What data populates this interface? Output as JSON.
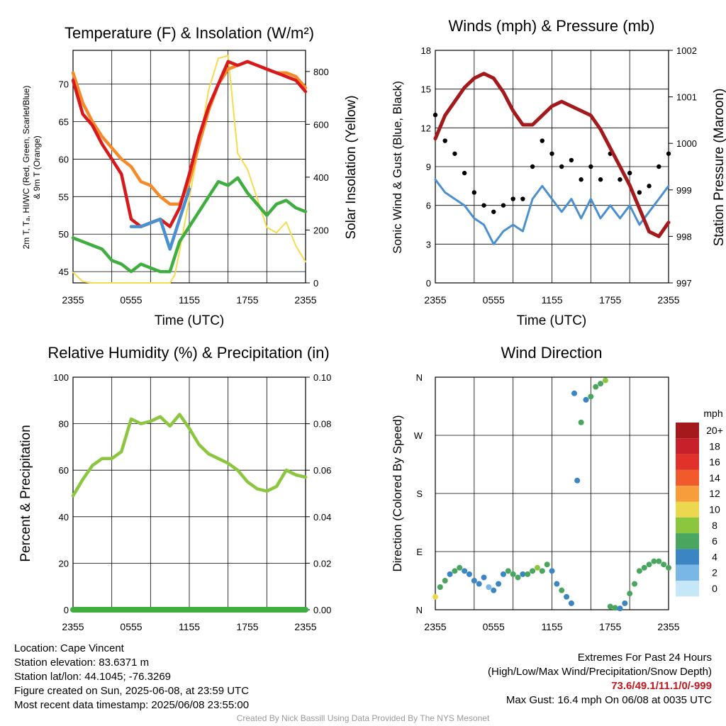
{
  "time_ticks": [
    "2355",
    "0555",
    "1155",
    "1755",
    "2355"
  ],
  "colors": {
    "temp": "#d7191c",
    "dewpoint": "#3fae3f",
    "windchill": "#4a90cf",
    "temp9m": "#f58a2a",
    "solar": "#f6dc4c",
    "sonic": "#4a90cf",
    "gust": "#000000",
    "pressure": "#a3191c",
    "rh": "#8cc63f",
    "precip": "#3fae3f"
  },
  "panels": {
    "temp": {
      "title": "Temperature (F) & Insolation (W/m²)",
      "xlabel": "Time (UTC)",
      "ylabel_line1": "2m T, Tₐ, HI/WC (Red, Green, Scarlet/Blue)",
      "ylabel_line2": "& 9m T (Orange)",
      "ylabel_right": "Solar Insolation (Yellow)"
    },
    "wind": {
      "title": "Winds (mph) & Pressure (mb)",
      "xlabel": "Time (UTC)",
      "ylabel_left": "Sonic Wind & Gust (Blue, Black)",
      "ylabel_right": "Station Pressure (Maroon)"
    },
    "rh": {
      "title": "Relative Humidity (%) & Precipitation (in)",
      "ylabel": "Percent & Precipitation"
    },
    "dir": {
      "title": "Wind Direction",
      "ylabel": "Direction (Colored By Speed)",
      "colorbar_title": "mph",
      "colorbar_labels": [
        "20+",
        "18",
        "16",
        "14",
        "12",
        "10",
        "8",
        "6",
        "4",
        "2",
        "0"
      ],
      "colorbar_colors": [
        "#a3191c",
        "#c7202a",
        "#e0322b",
        "#f15a2b",
        "#f89d3c",
        "#ecd84e",
        "#8cc63f",
        "#4aa55e",
        "#3b86c2",
        "#79b8e6",
        "#c5e7f7"
      ]
    }
  },
  "chart_data": [
    {
      "type": "line",
      "title": "Temperature (F) & Insolation (W/m²)",
      "xlabel": "Time (UTC)",
      "x_ticks": [
        "2355",
        "0555",
        "1155",
        "1755",
        "2355"
      ],
      "y_left_range": [
        43.5,
        74.5
      ],
      "y_left_ticks": [
        45,
        50,
        55,
        60,
        65,
        70
      ],
      "y_right_range": [
        0,
        880
      ],
      "y_right_ticks": [
        0,
        200,
        400,
        600,
        800
      ],
      "series": [
        {
          "name": "2m T",
          "axis": "left",
          "color": "#d7191c",
          "x": [
            0,
            1,
            2,
            3,
            4,
            5,
            6,
            7,
            8,
            9,
            10,
            11,
            12,
            13,
            14,
            15,
            16,
            17,
            18,
            19,
            20,
            21,
            22,
            23,
            24
          ],
          "y": [
            70.5,
            66,
            64.5,
            62,
            60,
            58,
            52,
            51,
            51.5,
            52,
            51,
            53.5,
            58,
            63,
            67,
            70,
            73,
            72.5,
            73,
            72.5,
            72,
            71.5,
            71,
            70.5,
            69
          ]
        },
        {
          "name": "Dewpoint",
          "axis": "left",
          "color": "#3fae3f",
          "x": [
            0,
            1,
            2,
            3,
            4,
            5,
            6,
            7,
            8,
            9,
            10,
            11,
            12,
            13,
            14,
            15,
            16,
            17,
            18,
            19,
            20,
            21,
            22,
            23,
            24
          ],
          "y": [
            49.5,
            49,
            48.5,
            48,
            46.5,
            46,
            45,
            46,
            45.5,
            45,
            45,
            49,
            51,
            53,
            55,
            57,
            56.5,
            57.5,
            55.5,
            54,
            52.5,
            54,
            54.5,
            53.5,
            53
          ]
        },
        {
          "name": "HI/WC",
          "axis": "left",
          "color": "#4a90cf",
          "x": [
            6,
            7,
            8,
            9,
            10,
            11,
            12
          ],
          "y": [
            51,
            51,
            51.5,
            52,
            48,
            52,
            56
          ]
        },
        {
          "name": "9m T",
          "axis": "left",
          "color": "#f58a2a",
          "x": [
            0,
            1,
            2,
            3,
            4,
            5,
            6,
            7,
            8,
            9,
            10,
            11,
            12,
            13,
            14,
            15,
            16,
            17,
            18,
            19,
            20,
            21,
            22,
            23,
            24
          ],
          "y": [
            71.5,
            67.5,
            65,
            63,
            61.5,
            60,
            59,
            57,
            56.5,
            55,
            54,
            54,
            57,
            62,
            66.5,
            70,
            72,
            72.5,
            73,
            72.5,
            72,
            71.5,
            71.5,
            71,
            69.5
          ]
        },
        {
          "name": "Solar",
          "axis": "right",
          "color": "#f6dc4c",
          "x": [
            0,
            1,
            2,
            3,
            4,
            5,
            6,
            7,
            8,
            9,
            10,
            10.5,
            11,
            12,
            13,
            14,
            15,
            16,
            17,
            18,
            19,
            20,
            21,
            22,
            23,
            24
          ],
          "y": [
            40,
            5,
            0,
            0,
            0,
            0,
            0,
            0,
            0,
            0,
            0,
            30,
            120,
            320,
            520,
            730,
            850,
            860,
            490,
            430,
            320,
            210,
            190,
            230,
            140,
            80
          ]
        }
      ]
    },
    {
      "type": "line",
      "title": "Winds (mph) & Pressure (mb)",
      "xlabel": "Time (UTC)",
      "x_ticks": [
        "2355",
        "0555",
        "1155",
        "1755",
        "2355"
      ],
      "y_left_range": [
        0,
        18
      ],
      "y_left_ticks": [
        0,
        3,
        6,
        9,
        12,
        15,
        18
      ],
      "y_right_range": [
        997,
        1002
      ],
      "y_right_ticks": [
        997,
        998,
        999,
        1000,
        1001,
        1002
      ],
      "series": [
        {
          "name": "Sonic Wind",
          "axis": "left",
          "color": "#4a90cf",
          "x": [
            0,
            1,
            2,
            3,
            4,
            5,
            6,
            7,
            8,
            9,
            10,
            11,
            12,
            13,
            14,
            15,
            16,
            17,
            18,
            19,
            20,
            21,
            22,
            23,
            24
          ],
          "y": [
            8,
            7,
            6.5,
            6,
            5,
            4.5,
            3,
            4,
            4.5,
            4,
            6.5,
            7.5,
            6.5,
            5.5,
            6.5,
            5,
            6.5,
            5,
            6,
            5,
            6,
            4.5,
            5.5,
            6.5,
            7.5
          ]
        },
        {
          "name": "Gust",
          "axis": "left",
          "color": "#000000",
          "x": [
            0,
            1,
            2,
            3,
            4,
            5,
            6,
            7,
            8,
            9,
            10,
            11,
            12,
            13,
            14,
            15,
            16,
            17,
            18,
            19,
            20,
            21,
            22,
            23,
            24
          ],
          "y": [
            13,
            11,
            10,
            8.5,
            7,
            6,
            5.5,
            6,
            6.5,
            6.5,
            9,
            11,
            10,
            9,
            9.5,
            8,
            9,
            8,
            10,
            8,
            8.5,
            7,
            7.5,
            9,
            10
          ]
        },
        {
          "name": "Pressure",
          "axis": "right",
          "color": "#a3191c",
          "x": [
            0,
            1,
            2,
            3,
            4,
            5,
            6,
            7,
            8,
            9,
            10,
            11,
            12,
            13,
            14,
            15,
            16,
            17,
            18,
            19,
            20,
            21,
            22,
            23,
            24
          ],
          "y": [
            1000.1,
            1000.6,
            1000.9,
            1001.2,
            1001.4,
            1001.5,
            1001.4,
            1001.1,
            1000.7,
            1000.4,
            1000.4,
            1000.6,
            1000.8,
            1000.9,
            1000.8,
            1000.7,
            1000.6,
            1000.3,
            999.9,
            999.5,
            999.1,
            998.6,
            998.1,
            998.0,
            998.3
          ]
        }
      ]
    },
    {
      "type": "line",
      "title": "Relative Humidity (%) & Precipitation (in)",
      "x_ticks": [
        "2355",
        "0555",
        "1155",
        "1755",
        "2355"
      ],
      "y_left_range": [
        0,
        100
      ],
      "y_left_ticks": [
        0,
        20,
        40,
        60,
        80,
        100
      ],
      "y_right_range": [
        0,
        0.1
      ],
      "y_right_ticks": [
        "0.00",
        "0.02",
        "0.04",
        "0.06",
        "0.08",
        "0.10"
      ],
      "series": [
        {
          "name": "RH",
          "axis": "left",
          "color": "#8cc63f",
          "x": [
            0,
            1,
            2,
            3,
            4,
            5,
            6,
            7,
            8,
            9,
            10,
            11,
            12,
            13,
            14,
            15,
            16,
            17,
            18,
            19,
            20,
            21,
            22,
            23,
            24
          ],
          "y": [
            49,
            56,
            62,
            65,
            65,
            68,
            82,
            80,
            81,
            83,
            79,
            84,
            78,
            71,
            67,
            65,
            63,
            60,
            55,
            52,
            51,
            53,
            60,
            58,
            57
          ]
        },
        {
          "name": "Precip",
          "axis": "right",
          "color": "#3fae3f",
          "x": [
            0,
            24
          ],
          "y": [
            0,
            0
          ]
        }
      ]
    },
    {
      "type": "scatter",
      "title": "Wind Direction",
      "x_ticks": [
        "2355",
        "0555",
        "1155",
        "1755",
        "2355"
      ],
      "y_ticks": [
        "N",
        "E",
        "S",
        "W",
        "N"
      ],
      "y_range": [
        0,
        360
      ],
      "colorbar": {
        "title": "mph",
        "labels": [
          "20+",
          "18",
          "16",
          "14",
          "12",
          "10",
          "8",
          "6",
          "4",
          "2",
          "0"
        ]
      },
      "series": [
        {
          "name": "Direction",
          "x": [
            0,
            0.5,
            1,
            1.5,
            2,
            2.5,
            3,
            3.5,
            4,
            4.5,
            5,
            5.5,
            6,
            6.5,
            7,
            7.5,
            8,
            8.5,
            9,
            9.5,
            10,
            10.5,
            11,
            11.5,
            12,
            12.5,
            13,
            13.5,
            14,
            14.3,
            14.6,
            15,
            15.5,
            16,
            16.5,
            17,
            17.5,
            18,
            18.5,
            19,
            19.5,
            20,
            20.5,
            21,
            21.5,
            22,
            22.5,
            23,
            23.5,
            24
          ],
          "y": [
            20,
            35,
            45,
            55,
            60,
            65,
            60,
            55,
            45,
            40,
            50,
            35,
            30,
            40,
            55,
            60,
            55,
            50,
            55,
            55,
            60,
            65,
            60,
            70,
            60,
            40,
            30,
            20,
            10,
            335,
            200,
            290,
            325,
            330,
            345,
            350,
            355,
            5,
            3,
            2,
            10,
            25,
            40,
            60,
            65,
            70,
            75,
            75,
            70,
            65
          ],
          "speed": [
            10,
            6,
            5,
            4,
            5,
            6,
            4,
            3,
            3,
            4,
            3,
            2,
            3,
            4,
            3,
            5,
            6,
            5,
            4,
            5,
            6,
            7,
            5,
            6,
            4,
            4,
            5,
            3,
            3,
            4,
            4,
            6,
            4,
            5,
            5,
            6,
            7,
            6,
            5,
            4,
            4,
            5,
            6,
            5,
            6,
            5,
            6,
            5,
            6,
            5
          ]
        }
      ]
    }
  ],
  "footer": {
    "location": "Location: Cape Vincent",
    "elevation": "Station elevation: 83.6371 m",
    "latlon": "Station lat/lon: 44.1045; -76.3269",
    "created": "Figure created on Sun, 2025-06-08, at 23:59 UTC",
    "recent": "Most recent data timestamp: 2025/06/08 23:55:00",
    "extremes_title": "Extremes For Past 24 Hours",
    "extremes_desc": "(High/Low/Max Wind/Precipitation/Snow Depth)",
    "extremes_values": "73.6/49.1/11.1/0/-999",
    "max_gust": "Max Gust: 16.4 mph On 06/08 at 0035 UTC",
    "credit": "Created By Nick Bassill Using Data Provided By The NYS Mesonet"
  }
}
